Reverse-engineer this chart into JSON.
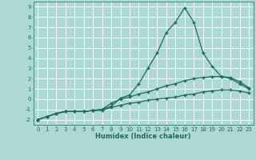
{
  "xlabel": "Humidex (Indice chaleur)",
  "background_color": "#aed8d3",
  "grid_color": "#ffffff",
  "line_color": "#1a6b5e",
  "xlim": [
    -0.5,
    23.5
  ],
  "ylim": [
    -2.5,
    9.5
  ],
  "x": [
    0,
    1,
    2,
    3,
    4,
    5,
    6,
    7,
    8,
    9,
    10,
    11,
    12,
    13,
    14,
    15,
    16,
    17,
    18,
    19,
    20,
    21,
    22,
    23
  ],
  "line1": [
    -2.0,
    -1.7,
    -1.4,
    -1.2,
    -1.2,
    -1.2,
    -1.1,
    -1.0,
    -0.7,
    0.1,
    0.4,
    1.5,
    3.0,
    4.5,
    6.5,
    7.5,
    8.9,
    7.5,
    4.5,
    3.2,
    2.2,
    2.0,
    1.5,
    1.0
  ],
  "line2": [
    -2.0,
    -1.7,
    -1.4,
    -1.2,
    -1.2,
    -1.2,
    -1.1,
    -1.0,
    -0.4,
    0.0,
    0.2,
    0.5,
    0.7,
    1.0,
    1.3,
    1.5,
    1.8,
    2.0,
    2.1,
    2.2,
    2.2,
    2.1,
    1.7,
    1.1
  ],
  "line3": [
    -2.0,
    -1.7,
    -1.4,
    -1.2,
    -1.2,
    -1.2,
    -1.1,
    -1.1,
    -0.8,
    -0.6,
    -0.4,
    -0.3,
    -0.1,
    0.0,
    0.1,
    0.2,
    0.4,
    0.5,
    0.7,
    0.8,
    0.9,
    0.9,
    0.8,
    0.6
  ],
  "xticks": [
    0,
    1,
    2,
    3,
    4,
    5,
    6,
    7,
    8,
    9,
    10,
    11,
    12,
    13,
    14,
    15,
    16,
    17,
    18,
    19,
    20,
    21,
    22,
    23
  ],
  "yticks": [
    -2,
    -1,
    0,
    1,
    2,
    3,
    4,
    5,
    6,
    7,
    8,
    9
  ],
  "marker": "+",
  "markersize": 3,
  "linewidth": 0.9
}
